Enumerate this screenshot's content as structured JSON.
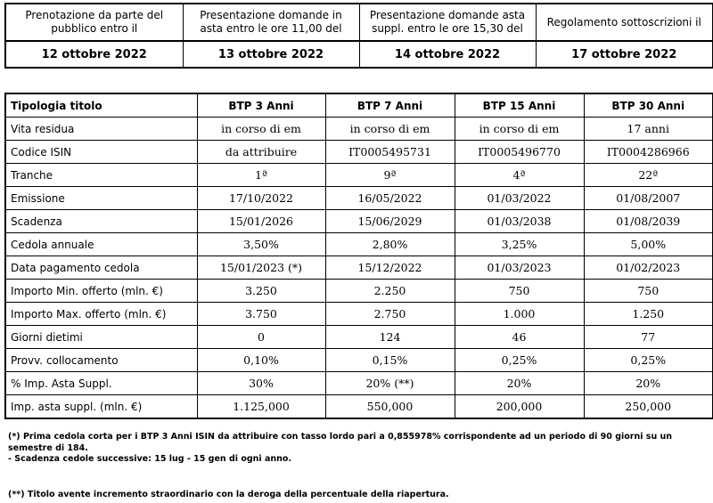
{
  "header_dates": {
    "labels": [
      "Prenotazione da parte del pubblico entro il",
      "Presentazione domande in asta entro le ore 11,00 del",
      "Presentazione domande asta suppl. entro le ore 15,30 del",
      "Regolamento sottoscrizioni il"
    ],
    "dates": [
      "12 ottobre 2022",
      "13 ottobre 2022",
      "14 ottobre 2022",
      "17 ottobre 2022"
    ]
  },
  "table": {
    "header": [
      "Tipologia titolo",
      "BTP 3 Anni",
      "BTP 7 Anni",
      "BTP 15 Anni",
      "BTP 30 Anni"
    ],
    "rows": [
      [
        "Vita residua",
        "in corso di em",
        "in corso di em",
        "in corso di em",
        "17 anni"
      ],
      [
        "Codice ISIN",
        "da attribuire",
        "IT0005495731",
        "IT0005496770",
        "IT0004286966"
      ],
      [
        "Tranche",
        "1ª",
        "9ª",
        "4ª",
        "22ª"
      ],
      [
        "Emissione",
        "17/10/2022",
        "16/05/2022",
        "01/03/2022",
        "01/08/2007"
      ],
      [
        "Scadenza",
        "15/01/2026",
        "15/06/2029",
        "01/03/2038",
        "01/08/2039"
      ],
      [
        "Cedola annuale",
        "3,50%",
        "2,80%",
        "3,25%",
        "5,00%"
      ],
      [
        "Data pagamento cedola",
        "15/01/2023 (*)",
        "15/12/2022",
        "01/03/2023",
        "01/02/2023"
      ],
      [
        "Importo Min. offerto (mln. €)",
        "3.250",
        "2.250",
        "750",
        "750"
      ],
      [
        "Importo Max. offerto (mln. €)",
        "3.750",
        "2.750",
        "1.000",
        "1.250"
      ],
      [
        "Giorni dietimi",
        "0",
        "124",
        "46",
        "77"
      ],
      [
        "Provv. collocamento",
        "0,10%",
        "0,15%",
        "0,25%",
        "0,25%"
      ],
      [
        "% Imp. Asta Suppl.",
        "30%",
        "20% (**)",
        "20%",
        "20%"
      ],
      [
        "Imp. asta suppl. (mln. €)",
        "1.125,000",
        "550,000",
        "200,000",
        "250,000"
      ]
    ]
  },
  "notes": {
    "note1_line1": "(*) Prima cedola corta per i BTP 3 Anni ISIN da attribuire con tasso lordo pari a 0,855978% corrispondente ad un periodo di 90 giorni su un semestre di 184.",
    "note1_line2": "- Scadenza cedole successive: 15 lug - 15 gen di ogni anno.",
    "note2": "(**) Titolo avente incremento straordinario con la deroga della percentuale della riapertura."
  }
}
